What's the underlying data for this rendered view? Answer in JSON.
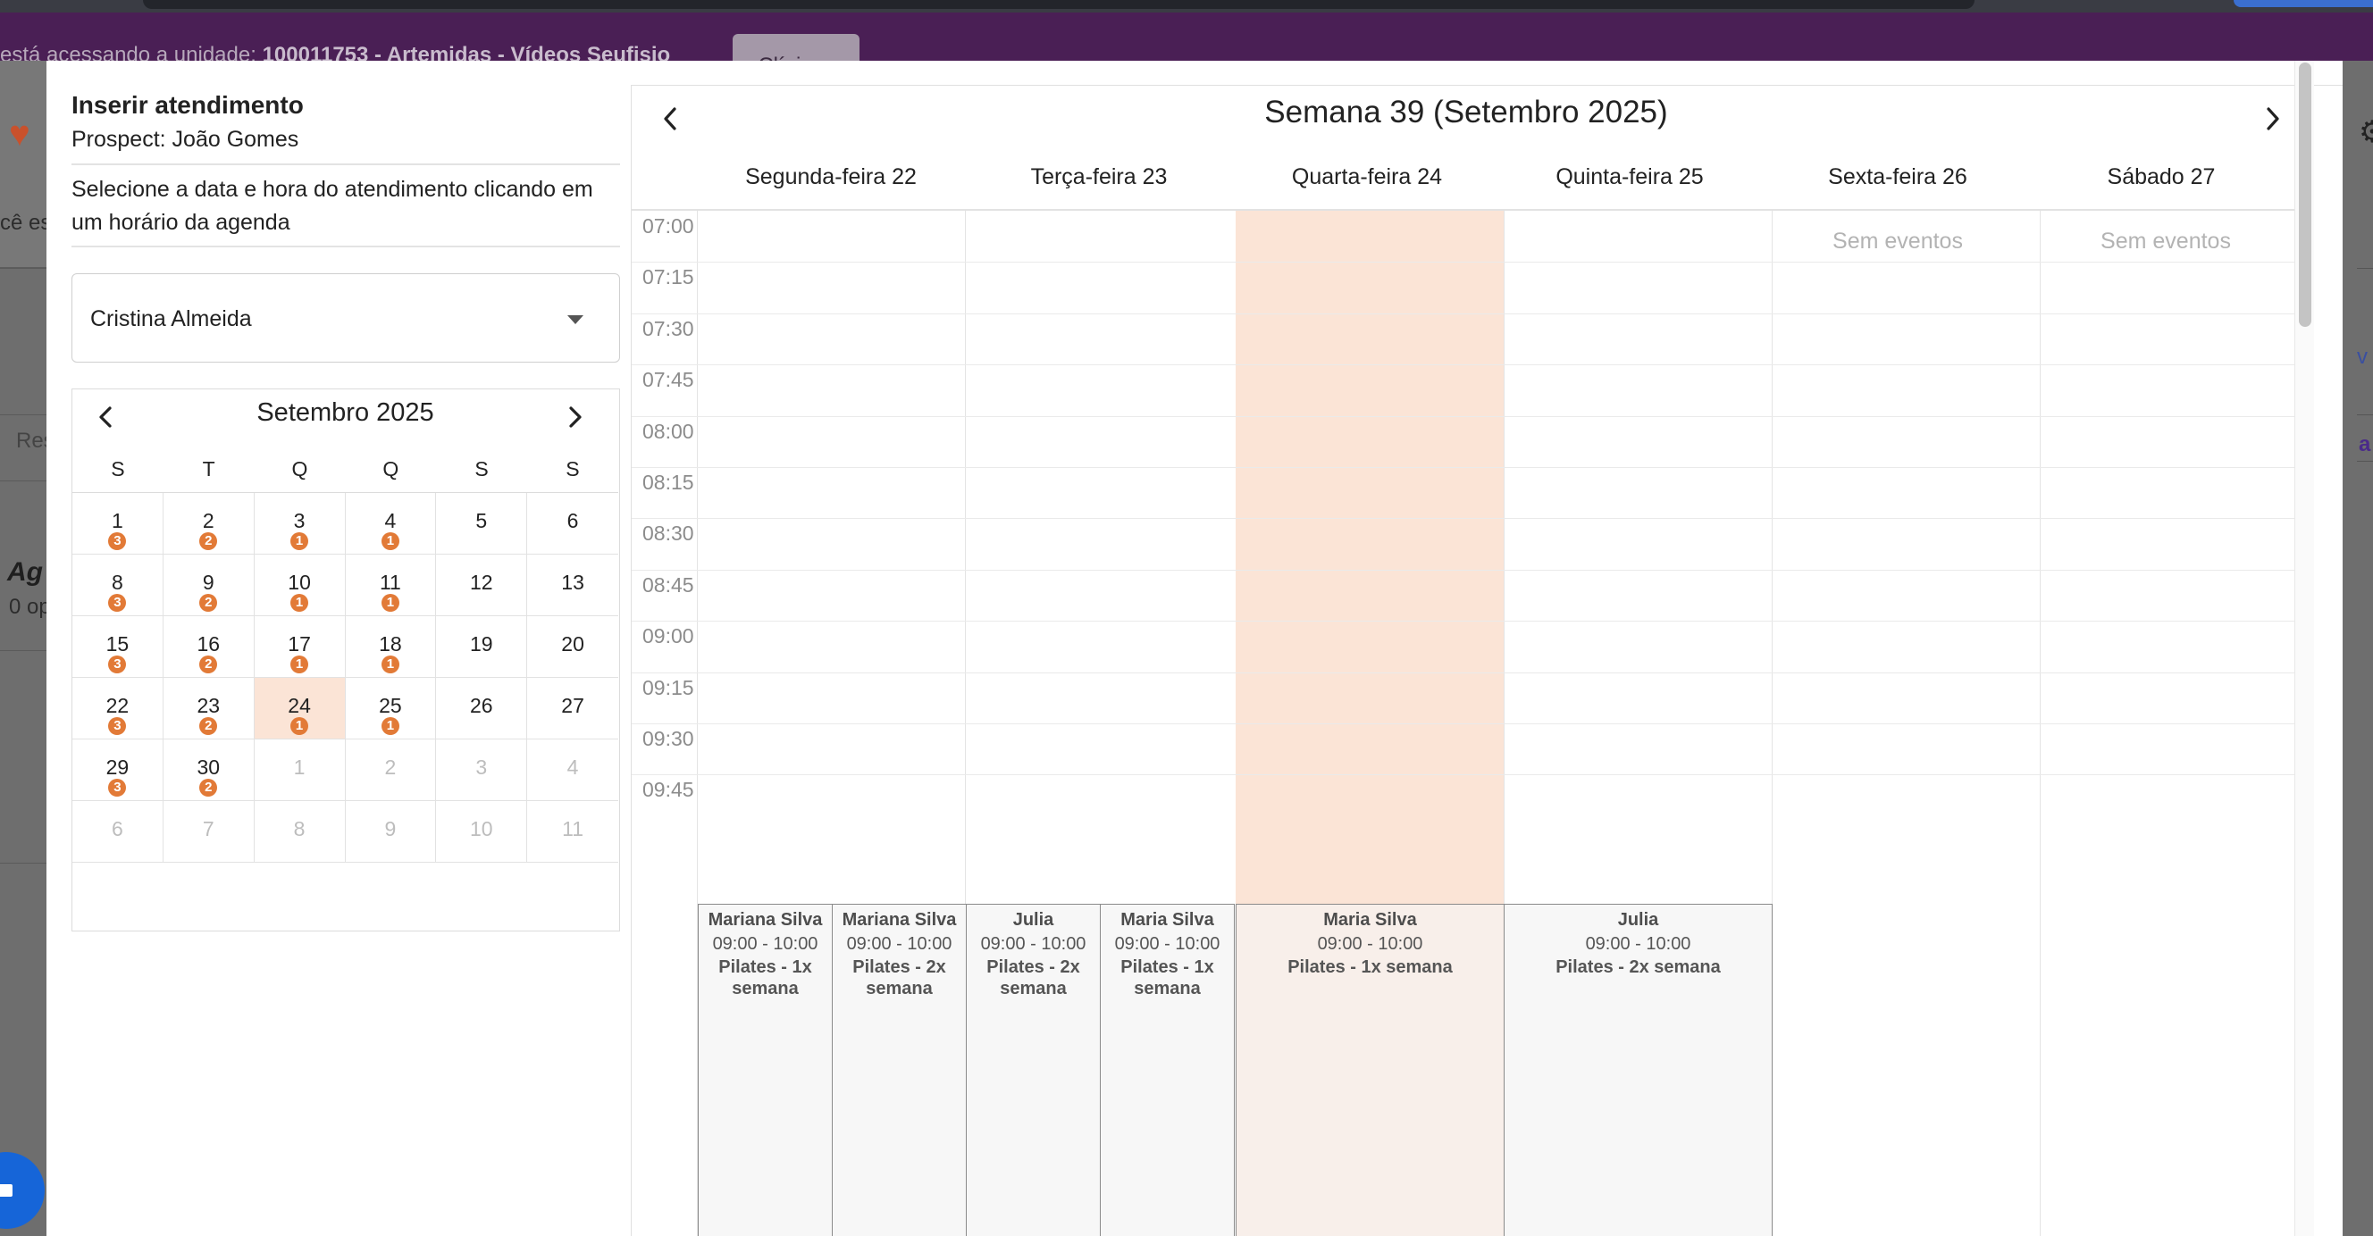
{
  "background": {
    "banner_prefix": "está acessando a unidade: ",
    "banner_unit": "100011753 - Artemidas - Vídeos Seufisio",
    "banner_button": "Clínicas",
    "left_fragment_1": "cê es",
    "left_fragment_2": "Res",
    "left_fragment_3": "Ag",
    "left_fragment_4": "0 op",
    "right_fragment_1": "v",
    "right_fragment_2": "a"
  },
  "modal": {
    "title": "Inserir atendimento",
    "prospect": "Prospect: João Gomes",
    "instructions": "Selecione a data e hora do atendimento clicando em um horário da agenda",
    "professional_select": {
      "value": "Cristina Almeida"
    }
  },
  "mini_calendar": {
    "month_label": "Setembro 2025",
    "weekdays": [
      "S",
      "T",
      "Q",
      "Q",
      "S",
      "S"
    ],
    "days": [
      {
        "day": "1",
        "badge": "3"
      },
      {
        "day": "2",
        "badge": "2"
      },
      {
        "day": "3",
        "badge": "1"
      },
      {
        "day": "4",
        "badge": "1"
      },
      {
        "day": "5",
        "badge": ""
      },
      {
        "day": "6",
        "badge": ""
      },
      {
        "day": "8",
        "badge": "3"
      },
      {
        "day": "9",
        "badge": "2"
      },
      {
        "day": "10",
        "badge": "1"
      },
      {
        "day": "11",
        "badge": "1"
      },
      {
        "day": "12",
        "badge": ""
      },
      {
        "day": "13",
        "badge": ""
      },
      {
        "day": "15",
        "badge": "3"
      },
      {
        "day": "16",
        "badge": "2"
      },
      {
        "day": "17",
        "badge": "1"
      },
      {
        "day": "18",
        "badge": "1"
      },
      {
        "day": "19",
        "badge": ""
      },
      {
        "day": "20",
        "badge": ""
      },
      {
        "day": "22",
        "badge": "3"
      },
      {
        "day": "23",
        "badge": "2"
      },
      {
        "day": "24",
        "badge": "1",
        "selected": true
      },
      {
        "day": "25",
        "badge": "1"
      },
      {
        "day": "26",
        "badge": ""
      },
      {
        "day": "27",
        "badge": ""
      },
      {
        "day": "29",
        "badge": "3"
      },
      {
        "day": "30",
        "badge": "2"
      },
      {
        "day": "1",
        "badge": "",
        "other": true
      },
      {
        "day": "2",
        "badge": "",
        "other": true
      },
      {
        "day": "3",
        "badge": "",
        "other": true
      },
      {
        "day": "4",
        "badge": "",
        "other": true
      },
      {
        "day": "6",
        "badge": "",
        "other": true
      },
      {
        "day": "7",
        "badge": "",
        "other": true
      },
      {
        "day": "8",
        "badge": "",
        "other": true
      },
      {
        "day": "9",
        "badge": "",
        "other": true
      },
      {
        "day": "10",
        "badge": "",
        "other": true
      },
      {
        "day": "11",
        "badge": "",
        "other": true
      }
    ],
    "badge_color": "#e27a37",
    "selected_color": "#fbe4d6"
  },
  "week_calendar": {
    "title": "Semana 39 (Setembro 2025)",
    "days": [
      "Segunda-feira 22",
      "Terça-feira 23",
      "Quarta-feira 24",
      "Quinta-feira 25",
      "Sexta-feira 26",
      "Sábado 27"
    ],
    "times": [
      "07:00",
      "07:15",
      "07:30",
      "07:45",
      "08:00",
      "08:15",
      "08:30",
      "08:45",
      "09:00",
      "09:15",
      "09:30",
      "09:45"
    ],
    "no_events_text": "Sem eventos",
    "today_color": "#fbe4d6",
    "events": [
      {
        "name": "Mariana Silva",
        "time": "09:00 - 10:00",
        "service": "Pilates - 1x semana"
      },
      {
        "name": "Mariana Silva",
        "time": "09:00 - 10:00",
        "service": "Pilates - 2x semana"
      },
      {
        "name": "Julia",
        "time": "09:00 - 10:00",
        "service": "Pilates - 2x semana"
      },
      {
        "name": "Maria Silva",
        "time": "09:00 - 10:00",
        "service": "Pilates - 1x semana"
      },
      {
        "name": "Maria Silva",
        "time": "09:00 - 10:00",
        "service": "Pilates - 1x semana"
      },
      {
        "name": "Julia",
        "time": "09:00 - 10:00",
        "service": "Pilates - 2x semana"
      }
    ]
  }
}
